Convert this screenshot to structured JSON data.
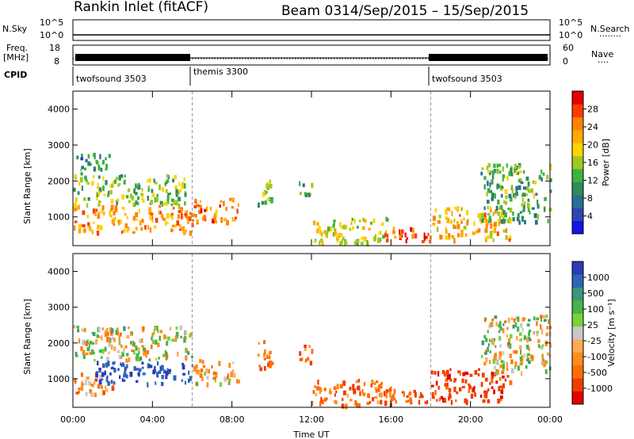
{
  "header": {
    "station": "Rankin Inlet (fitACF)",
    "beam": "Beam 03",
    "date_range": "14/Sep/2015 – 15/Sep/2015"
  },
  "top_panels": {
    "nsky_label": "N.Sky",
    "nsearch_label": "N.Search",
    "nsearch_legend": "········",
    "left_ticks_count": [
      "10^5",
      "10^0"
    ],
    "right_ticks_count": [
      "10^5",
      "10^0"
    ],
    "freq_label_1": "Freq.",
    "freq_label_2": "[MHz]",
    "freq_ticks": [
      "18",
      "8"
    ],
    "nave_label": "Nave",
    "nave_legend": "····",
    "nave_ticks": [
      "60",
      "0"
    ],
    "cpid_label": "CPID",
    "cpid_modes": [
      {
        "name": "twofsound 3503",
        "start_hour": 0
      },
      {
        "name": "themis 3300",
        "start_hour": 6
      },
      {
        "name": "twofsound 3503",
        "start_hour": 18
      }
    ]
  },
  "colorbars": {
    "power_label": "Power [dB]",
    "power_ticks": [
      "28",
      "24",
      "20",
      "16",
      "12",
      "8",
      "4"
    ],
    "power_colors": [
      "#e60000",
      "#ff3c00",
      "#ff8200",
      "#ffaa00",
      "#ffd200",
      "#a0c820",
      "#3cb43c",
      "#2d8c5a",
      "#2a6e96",
      "#2e46b4",
      "#1414e6"
    ],
    "velocity_label": "Velocity [m s⁻¹]",
    "velocity_ticks": [
      "1000",
      "500",
      "100",
      "25",
      "-25",
      "-100",
      "-500",
      "-1000"
    ],
    "velocity_colors": [
      "#2d3cb4",
      "#2d64b4",
      "#3c9678",
      "#46b446",
      "#78d23c",
      "#c8c8c8",
      "#ffaa50",
      "#ff8c1e",
      "#ff6e00",
      "#f03c00",
      "#e60000"
    ]
  },
  "chart_data": [
    {
      "type": "heatmap",
      "panel": "power",
      "ylabel": "Slant Range [km]",
      "ylim": [
        200,
        4500
      ],
      "yticks": [
        1000,
        2000,
        3000,
        4000
      ],
      "xlim": [
        0,
        24
      ],
      "xticks": [
        "00:00",
        "04:00",
        "08:00",
        "12:00",
        "16:00",
        "20:00",
        "00:00"
      ],
      "mode_change_hours": [
        6,
        18
      ],
      "echo_regions": [
        {
          "t0": 0.0,
          "t1": 6.1,
          "r0": 600,
          "r1": 1350,
          "level": 24
        },
        {
          "t0": 0.0,
          "t1": 5.8,
          "r0": 1350,
          "r1": 2200,
          "level": 14
        },
        {
          "t0": 0.1,
          "t1": 1.8,
          "r0": 2200,
          "r1": 2800,
          "level": 10
        },
        {
          "t0": 6.0,
          "t1": 8.3,
          "r0": 900,
          "r1": 1600,
          "level": 26
        },
        {
          "t0": 9.2,
          "t1": 10.0,
          "r0": 1300,
          "r1": 2100,
          "level": 14
        },
        {
          "t0": 11.3,
          "t1": 12.0,
          "r0": 1500,
          "r1": 2000,
          "level": 12
        },
        {
          "t0": 12.0,
          "t1": 16.0,
          "r0": 300,
          "r1": 1000,
          "level": 18
        },
        {
          "t0": 15.6,
          "t1": 18.0,
          "r0": 350,
          "r1": 800,
          "level": 28
        },
        {
          "t0": 18.0,
          "t1": 22.0,
          "r0": 400,
          "r1": 1300,
          "level": 22
        },
        {
          "t0": 20.5,
          "t1": 24.0,
          "r0": 900,
          "r1": 2500,
          "level": 12
        }
      ]
    },
    {
      "type": "heatmap",
      "panel": "velocity",
      "ylabel": "Slant Range [km]",
      "xlabel": "Time UT",
      "ylim": [
        200,
        4500
      ],
      "yticks": [
        1000,
        2000,
        3000,
        4000
      ],
      "xlim": [
        0,
        24
      ],
      "xticks": [
        "00:00",
        "04:00",
        "08:00",
        "12:00",
        "16:00",
        "20:00",
        "00:00"
      ],
      "mode_change_hours": [
        6,
        18
      ],
      "echo_regions": [
        {
          "t0": 0.0,
          "t1": 6.0,
          "r0": 1550,
          "r1": 2500,
          "velocity": 0
        },
        {
          "t0": 0.0,
          "t1": 2.0,
          "r0": 600,
          "r1": 1200,
          "velocity": -200
        },
        {
          "t0": 1.0,
          "t1": 6.0,
          "r0": 900,
          "r1": 1500,
          "velocity": 700
        },
        {
          "t0": 6.0,
          "t1": 8.3,
          "r0": 900,
          "r1": 1600,
          "velocity": -150
        },
        {
          "t0": 9.2,
          "t1": 10.0,
          "r0": 1300,
          "r1": 2100,
          "velocity": -300
        },
        {
          "t0": 11.3,
          "t1": 12.0,
          "r0": 1500,
          "r1": 2000,
          "velocity": -400
        },
        {
          "t0": 12.0,
          "t1": 16.0,
          "r0": 300,
          "r1": 1000,
          "velocity": -300
        },
        {
          "t0": 15.6,
          "t1": 18.0,
          "r0": 350,
          "r1": 800,
          "velocity": -400
        },
        {
          "t0": 18.0,
          "t1": 22.0,
          "r0": 400,
          "r1": 1300,
          "velocity": -600
        },
        {
          "t0": 20.5,
          "t1": 24.0,
          "r0": 1200,
          "r1": 2800,
          "velocity": 0
        }
      ]
    }
  ]
}
